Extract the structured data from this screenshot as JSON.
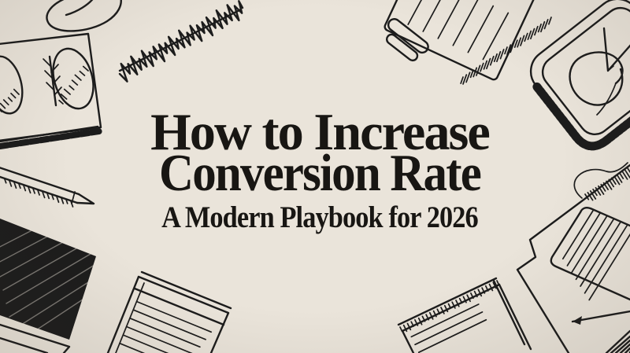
{
  "page": {
    "title_line1": "How to Increase",
    "title_line2": "Conversion Rate",
    "subtitle": "A Modern Playbook for 2026"
  },
  "theme": {
    "background": "#eae4da",
    "ink": "#1c1c1c",
    "title_color": "#181613"
  },
  "decorations": [
    "loop-scribble",
    "zigzag-scribble",
    "card-with-ovals",
    "pencil",
    "shaded-slab",
    "notepad",
    "ruled-paper",
    "document-with-pen",
    "stamp-tablet-with-checkmark",
    "notebook-with-clip",
    "corner-hatch"
  ]
}
